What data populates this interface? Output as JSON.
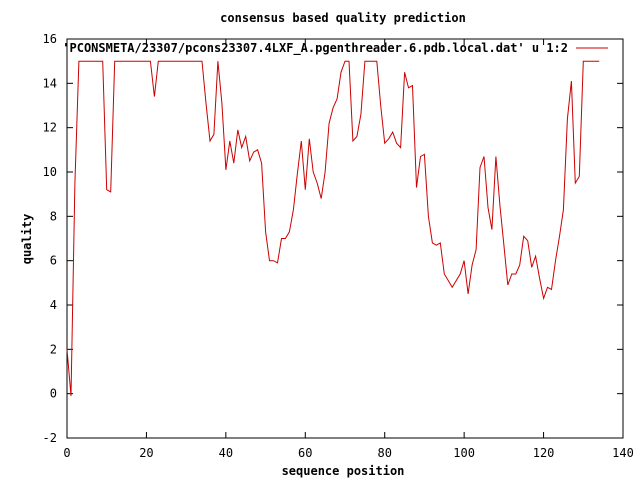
{
  "chart_data": {
    "type": "line",
    "title": "consensus based quality prediction",
    "xlabel": "sequence position",
    "ylabel": "quality",
    "xlim": [
      0,
      140
    ],
    "ylim": [
      -2,
      16
    ],
    "xticks": [
      "0",
      "20",
      "40",
      "60",
      "80",
      "100",
      "120",
      "140"
    ],
    "yticks": [
      "-2",
      "0",
      "2",
      "4",
      "6",
      "8",
      "10",
      "12",
      "14",
      "16"
    ],
    "grid": false,
    "legend_position": "top-right",
    "series": [
      {
        "name": "'PCONSMETA/23307/pcons23307.4LXF_A.pgenthreader.6.pdb.local.dat' u 1:2",
        "color": "#cc0000",
        "x": [
          0,
          1,
          2,
          3,
          4,
          5,
          6,
          7,
          8,
          9,
          10,
          11,
          12,
          13,
          14,
          15,
          16,
          17,
          18,
          19,
          20,
          21,
          22,
          23,
          24,
          25,
          26,
          27,
          28,
          29,
          30,
          31,
          32,
          33,
          34,
          35,
          36,
          37,
          38,
          39,
          40,
          41,
          42,
          43,
          44,
          45,
          46,
          47,
          48,
          49,
          50,
          51,
          52,
          53,
          54,
          55,
          56,
          57,
          58,
          59,
          60,
          61,
          62,
          63,
          64,
          65,
          66,
          67,
          68,
          69,
          70,
          71,
          72,
          73,
          74,
          75,
          76,
          77,
          78,
          79,
          80,
          81,
          82,
          83,
          84,
          85,
          86,
          87,
          88,
          89,
          90,
          91,
          92,
          93,
          94,
          95,
          96,
          97,
          98,
          99,
          100,
          101,
          102,
          103,
          104,
          105,
          106,
          107,
          108,
          109,
          110,
          111,
          112,
          113,
          114,
          115,
          116,
          117,
          118,
          119,
          120,
          121,
          122,
          123,
          124,
          125,
          126,
          127,
          128,
          129,
          130,
          131,
          132,
          133,
          134
        ],
        "y": [
          2.0,
          -0.1,
          9.5,
          15.0,
          15.0,
          15.0,
          15.0,
          15.0,
          15.0,
          15.0,
          9.2,
          9.1,
          15.0,
          15.0,
          15.0,
          15.0,
          15.0,
          15.0,
          15.0,
          15.0,
          15.0,
          15.0,
          13.4,
          15.0,
          15.0,
          15.0,
          15.0,
          15.0,
          15.0,
          15.0,
          15.0,
          15.0,
          15.0,
          15.0,
          15.0,
          13.1,
          11.4,
          11.7,
          15.0,
          13.1,
          10.1,
          11.4,
          10.4,
          11.9,
          11.1,
          11.6,
          10.5,
          10.9,
          11.0,
          10.4,
          7.3,
          6.0,
          6.0,
          5.9,
          7.0,
          7.0,
          7.3,
          8.3,
          9.9,
          11.4,
          9.2,
          11.5,
          10.0,
          9.5,
          8.8,
          10.0,
          12.2,
          12.9,
          13.3,
          14.5,
          15.0,
          15.0,
          11.4,
          11.6,
          12.6,
          15.0,
          15.0,
          15.0,
          15.0,
          13.0,
          11.3,
          11.5,
          11.8,
          11.3,
          11.1,
          14.5,
          13.8,
          13.9,
          9.3,
          10.7,
          10.8,
          8.0,
          6.8,
          6.7,
          6.8,
          5.4,
          5.1,
          4.8,
          5.1,
          5.4,
          6.0,
          4.5,
          5.8,
          6.5,
          10.2,
          10.7,
          8.4,
          7.4,
          10.7,
          8.5,
          6.7,
          4.9,
          5.4,
          5.4,
          5.8,
          7.1,
          6.9,
          5.7,
          6.2,
          5.2,
          4.3,
          4.8,
          4.7,
          6.0,
          7.1,
          8.3,
          12.4,
          14.1,
          9.5,
          9.8,
          15.0,
          15.0,
          15.0,
          15.0,
          15.0
        ]
      }
    ]
  }
}
